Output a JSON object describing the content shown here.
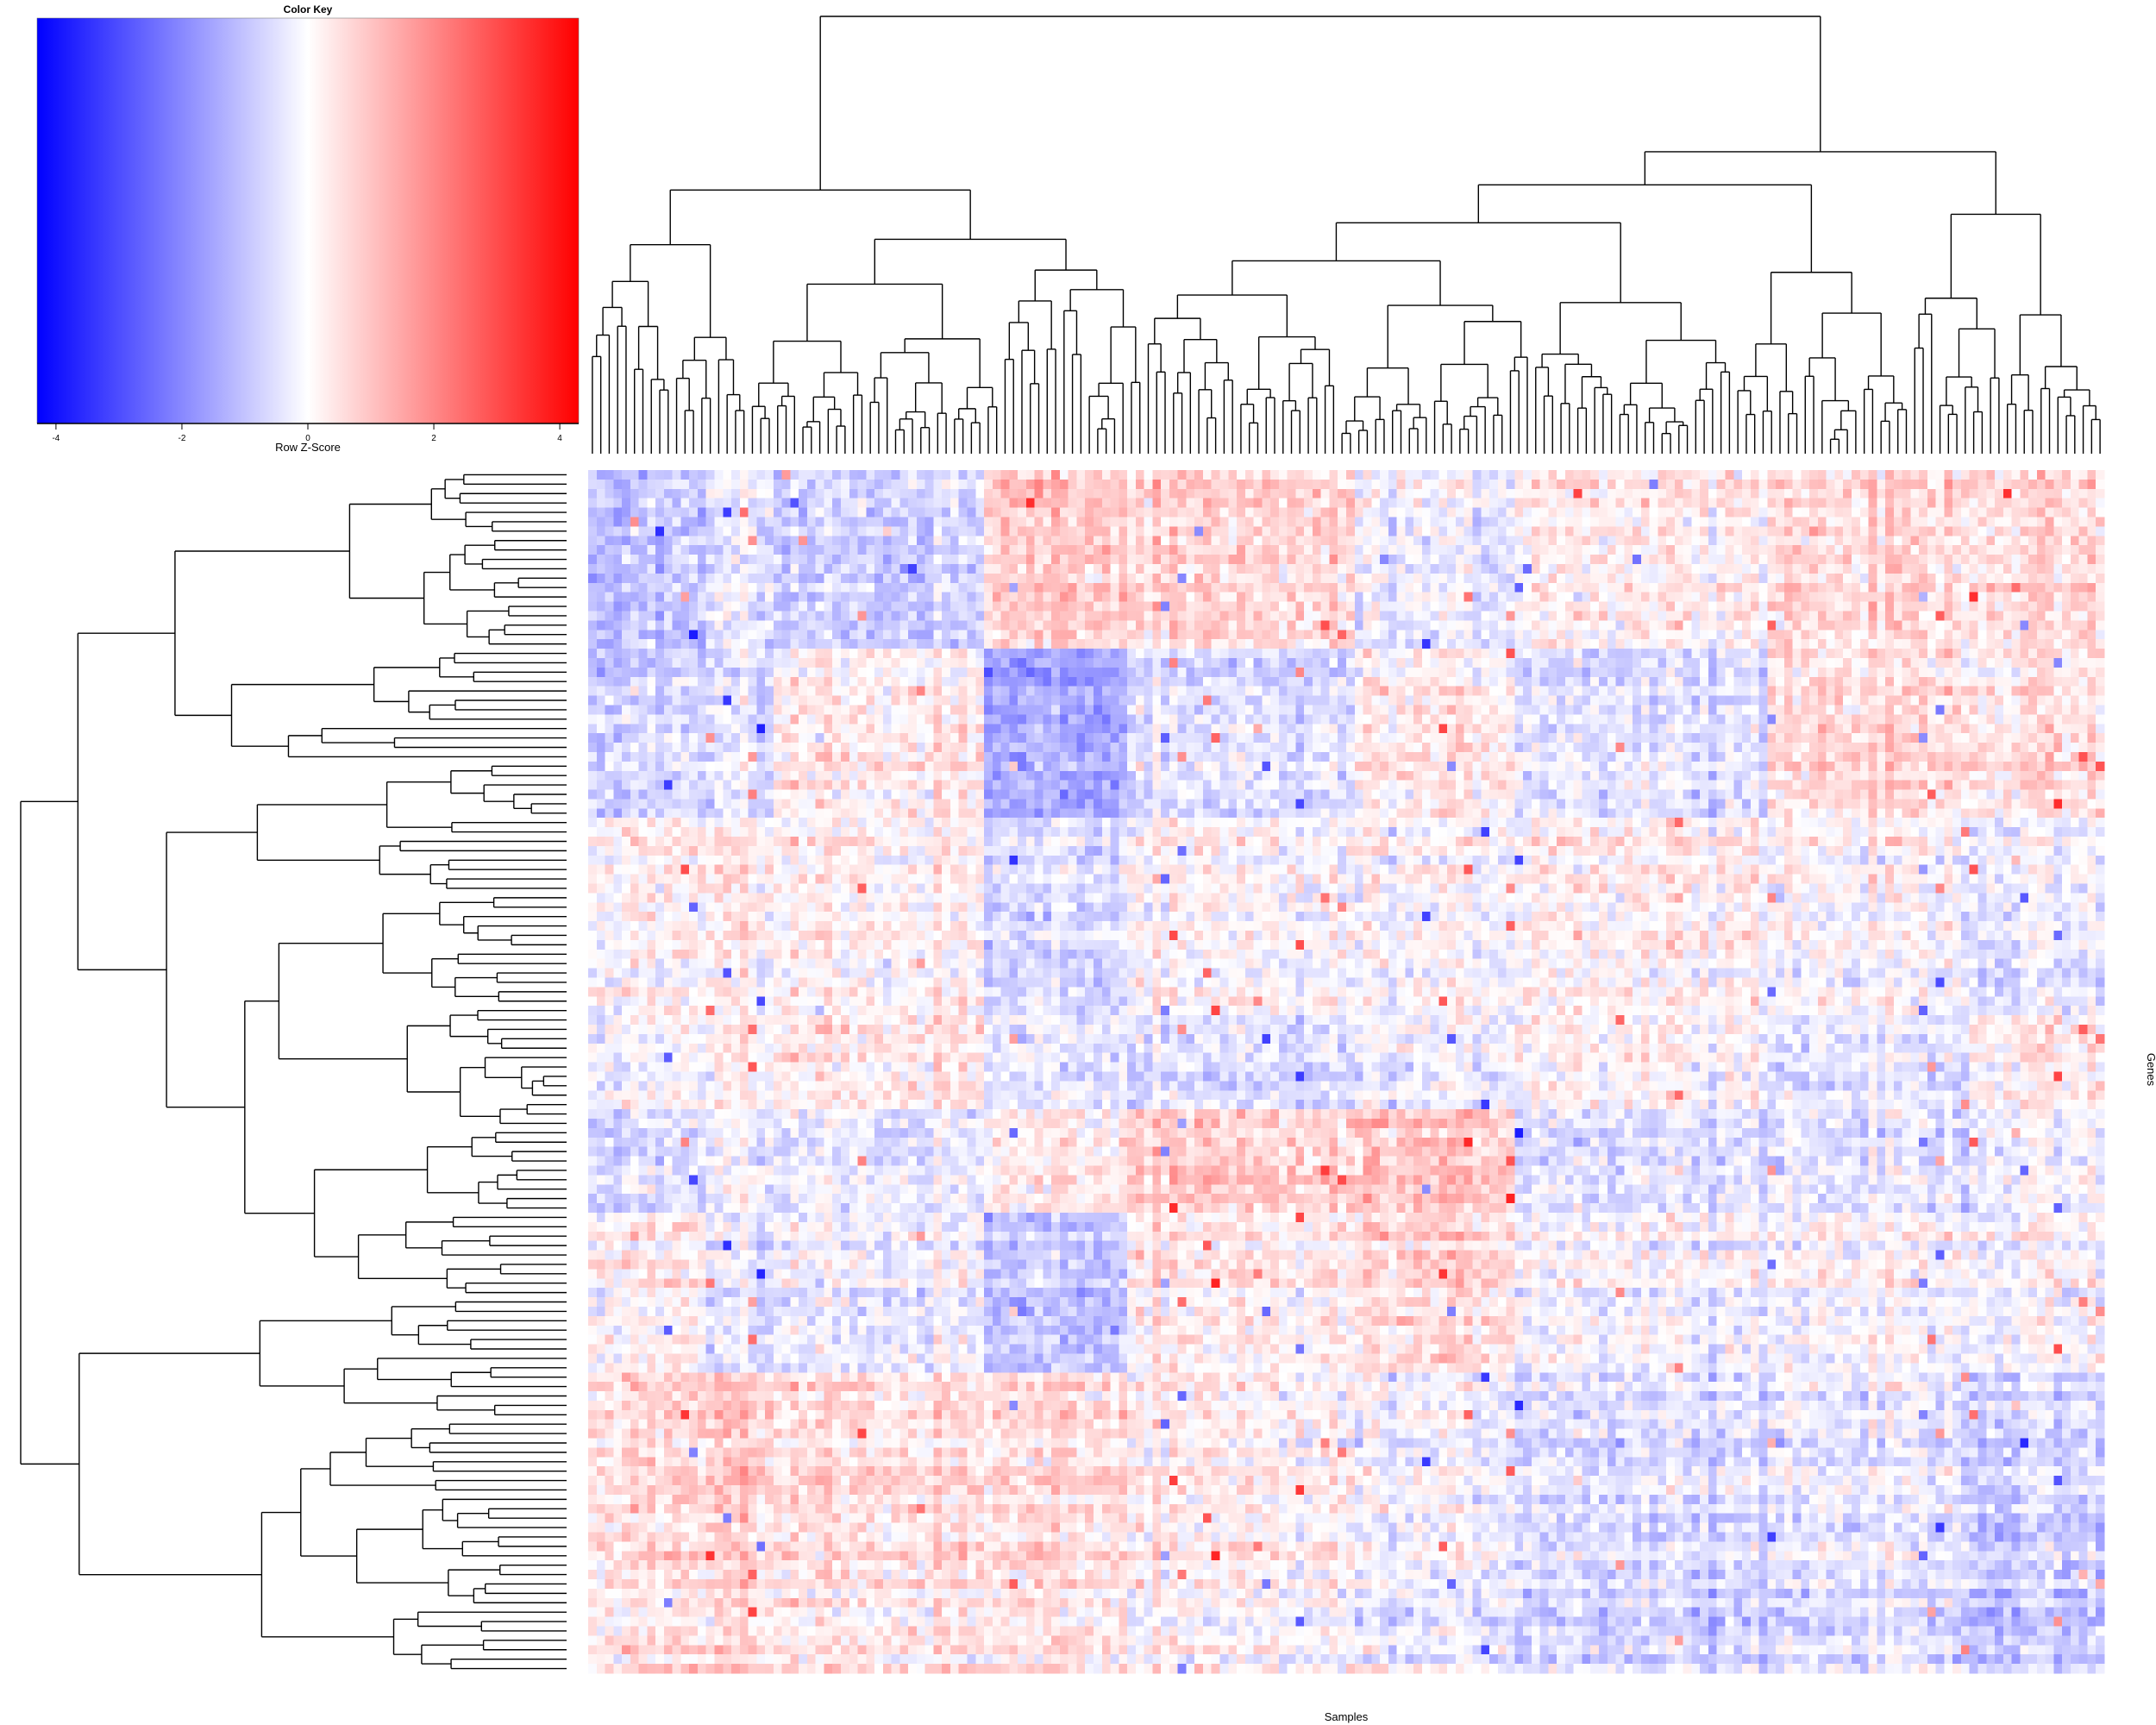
{
  "chart_data": {
    "type": "heatmap",
    "title": "",
    "xlabel": "Samples",
    "ylabel": "Genes",
    "n_columns": 180,
    "n_rows": 128,
    "row_dendrogram": true,
    "column_dendrogram": true,
    "color_key": {
      "title": "Color Key",
      "label": "Row Z-Score",
      "ticks": [
        "-4",
        "-2",
        "0",
        "2",
        "4"
      ],
      "tick_values": [
        -4,
        -2,
        0,
        2,
        4
      ],
      "range": [
        -4.3,
        4.3
      ],
      "low_color": "#0000ff",
      "mid_color": "#ffffff",
      "high_color": "#ff0000"
    },
    "approx_block_structure": {
      "column_group_bounds": [
        0,
        0.08,
        0.125,
        0.26,
        0.355,
        0.505,
        0.61,
        0.78,
        0.91,
        1.0
      ],
      "row_group_bounds": [
        0,
        0.15,
        0.29,
        0.45,
        0.535,
        0.615,
        0.75,
        1.0
      ],
      "mean_z": [
        [
          -1.0,
          -0.5,
          -0.8,
          0.8,
          0.6,
          -0.3,
          0.3,
          0.6,
          0.5
        ],
        [
          -0.6,
          -0.5,
          0.3,
          -1.5,
          -0.6,
          0.3,
          -0.4,
          0.6,
          0.5
        ],
        [
          0.2,
          0.2,
          0.2,
          -0.6,
          0.0,
          0.0,
          0.3,
          0.0,
          -0.3
        ],
        [
          0.0,
          0.2,
          0.4,
          -0.4,
          -0.6,
          -0.2,
          0.2,
          -0.4,
          0.3
        ],
        [
          -0.6,
          -0.4,
          -0.4,
          0.2,
          0.7,
          0.9,
          -0.5,
          -0.5,
          -0.3
        ],
        [
          0.3,
          -0.4,
          -0.2,
          -1.0,
          0.2,
          0.6,
          0.0,
          0.0,
          0.0
        ],
        [
          0.6,
          0.7,
          0.5,
          0.5,
          0.1,
          -0.2,
          -0.5,
          -0.4,
          -0.8
        ]
      ]
    }
  }
}
